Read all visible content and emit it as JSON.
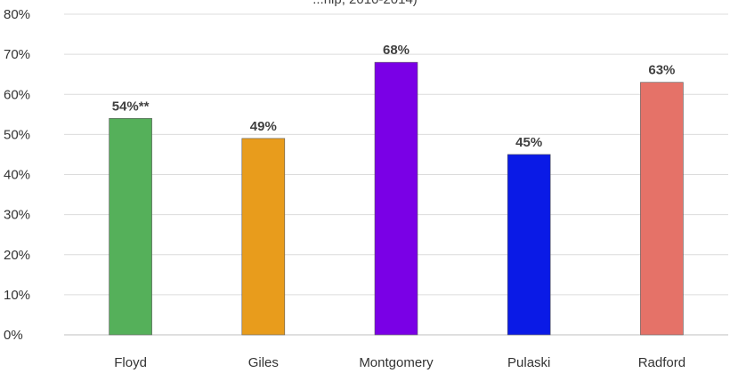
{
  "chart_data": {
    "type": "bar",
    "title": "...hip, 2010-2014)",
    "categories": [
      "Floyd",
      "Giles",
      "Montgomery",
      "Pulaski",
      "Radford"
    ],
    "values": [
      54,
      49,
      68,
      45,
      63
    ],
    "data_labels": [
      "54%**",
      "49%",
      "68%",
      "45%",
      "63%"
    ],
    "colors": [
      "#55b05a",
      "#e89c1c",
      "#7a00e6",
      "#0a1ae6",
      "#e57268"
    ],
    "ylim": [
      0,
      80
    ],
    "yticks": [
      0,
      10,
      20,
      30,
      40,
      50,
      60,
      70,
      80
    ],
    "ytick_labels": [
      "0%",
      "10%",
      "20%",
      "30%",
      "40%",
      "50%",
      "60%",
      "70%",
      "80%"
    ],
    "xlabel": "",
    "ylabel": "",
    "grid": true,
    "legend": "none"
  }
}
